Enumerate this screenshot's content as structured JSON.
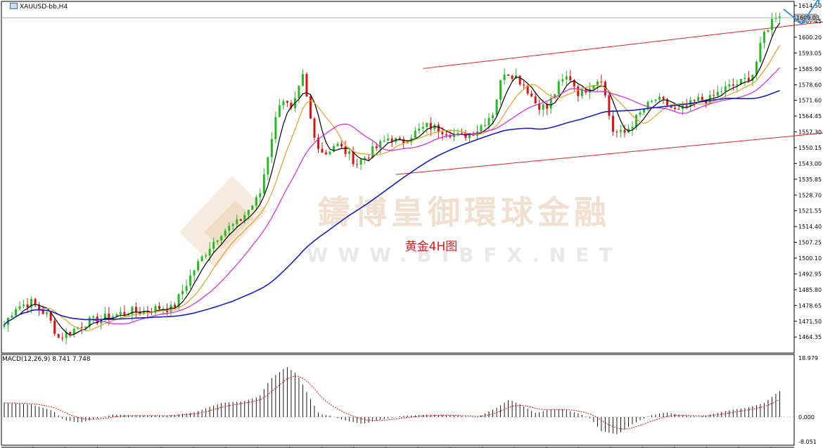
{
  "header": {
    "symbol": "XAUUSD-bb,H4"
  },
  "watermark": {
    "cn": "鑄博皇御環球金融",
    "en": "WWW.BIBFX.NET"
  },
  "colors": {
    "bull": "#22bb22",
    "bear": "#dd1111",
    "ma_black": "#000000",
    "ma_orange": "#e0a020",
    "ma_magenta": "#dd22dd",
    "ma_blue": "#1420c0",
    "channel": "#e02020",
    "arrow": "#2a8fdd",
    "current_price_box": "#c0c0c0"
  },
  "chart_data": [
    {
      "type": "candlestick",
      "title": "黄金4H图",
      "symbol": "XAUUSD-bb",
      "timeframe": "H4",
      "current_price": "1609.03",
      "y_ticks": [
        "1614.50",
        "1607.45",
        "1600.20",
        "1593.05",
        "1585.90",
        "1578.60",
        "1571.60",
        "1564.45",
        "1557.30",
        "1550.15",
        "1543.00",
        "1535.85",
        "1528.70",
        "1521.55",
        "1514.40",
        "1507.25",
        "1500.10",
        "1492.95",
        "1485.80",
        "1478.65",
        "1471.50",
        "1464.35"
      ],
      "ylim": [
        1459.0,
        1614.5
      ],
      "bars": 203,
      "close_path": [
        [
          0,
          1470
        ],
        [
          4,
          1478
        ],
        [
          10,
          1480
        ],
        [
          16,
          1474
        ],
        [
          20,
          1464
        ],
        [
          26,
          1468
        ],
        [
          30,
          1471
        ],
        [
          34,
          1472
        ],
        [
          40,
          1474
        ],
        [
          46,
          1476
        ],
        [
          52,
          1476
        ],
        [
          58,
          1478
        ],
        [
          62,
          1477
        ],
        [
          70,
          1495
        ],
        [
          76,
          1506
        ],
        [
          80,
          1512
        ],
        [
          86,
          1516
        ],
        [
          90,
          1522
        ],
        [
          94,
          1528
        ],
        [
          98,
          1552
        ],
        [
          102,
          1574
        ],
        [
          106,
          1566
        ],
        [
          110,
          1582
        ],
        [
          114,
          1555
        ],
        [
          118,
          1547
        ],
        [
          122,
          1552
        ],
        [
          126,
          1548
        ],
        [
          130,
          1543
        ],
        [
          134,
          1547
        ],
        [
          138,
          1551
        ],
        [
          142,
          1555
        ],
        [
          146,
          1552
        ],
        [
          150,
          1556
        ],
        [
          156,
          1560
        ],
        [
          162,
          1558
        ],
        [
          168,
          1555
        ],
        [
          174,
          1558
        ],
        [
          180,
          1566
        ],
        [
          184,
          1585
        ],
        [
          188,
          1583
        ],
        [
          192,
          1578
        ],
        [
          196,
          1570
        ],
        [
          200,
          1568
        ],
        [
          204,
          1578
        ],
        [
          208,
          1583
        ],
        [
          212,
          1574
        ],
        [
          216,
          1579
        ],
        [
          220,
          1582
        ],
        [
          224,
          1558
        ],
        [
          228,
          1556
        ],
        [
          232,
          1562
        ],
        [
          236,
          1568
        ],
        [
          240,
          1572
        ],
        [
          244,
          1570
        ],
        [
          248,
          1566
        ],
        [
          252,
          1569
        ],
        [
          256,
          1572
        ],
        [
          260,
          1572
        ],
        [
          264,
          1576
        ],
        [
          268,
          1578
        ],
        [
          272,
          1580
        ],
        [
          276,
          1584
        ],
        [
          280,
          1602
        ],
        [
          284,
          1610
        ],
        [
          288,
          1612
        ]
      ],
      "series": [
        {
          "name": "",
          "color": "#000000",
          "kind": "ma",
          "period": 5
        },
        {
          "name": "",
          "color": "#e0a020",
          "kind": "ma",
          "period": 10
        },
        {
          "name": "",
          "color": "#dd22dd",
          "kind": "ma",
          "period": 20
        },
        {
          "name": "",
          "color": "#1420c0",
          "kind": "ma",
          "period": 60
        }
      ],
      "channel": {
        "upper": [
          [
            0,
            1586
          ],
          [
            1,
            1613
          ]
        ],
        "lower": [
          [
            0,
            1538
          ],
          [
            1,
            1561
          ]
        ]
      },
      "projection_arrows": true
    },
    {
      "type": "macd_histogram",
      "label": "MACD(12,26,9) 8.741 7.748",
      "params": [
        12,
        26,
        9
      ],
      "macd": "8.741",
      "signal": "7.748",
      "y_ticks": [
        "18.979",
        "0.000",
        "-8.051"
      ],
      "ylim": [
        -8.051,
        18.979
      ],
      "profile": [
        [
          0,
          4.5
        ],
        [
          10,
          4.0
        ],
        [
          18,
          2.0
        ],
        [
          22,
          -1.0
        ],
        [
          28,
          -1.8
        ],
        [
          34,
          -0.5
        ],
        [
          40,
          0.8
        ],
        [
          50,
          0.5
        ],
        [
          60,
          0.4
        ],
        [
          70,
          1.5
        ],
        [
          80,
          4.5
        ],
        [
          88,
          5.0
        ],
        [
          94,
          6.5
        ],
        [
          98,
          12.0
        ],
        [
          104,
          16.0
        ],
        [
          108,
          13.5
        ],
        [
          112,
          7.0
        ],
        [
          116,
          1.0
        ],
        [
          120,
          0.4
        ],
        [
          126,
          -1.2
        ],
        [
          132,
          -2.2
        ],
        [
          138,
          -1.0
        ],
        [
          146,
          0.3
        ],
        [
          156,
          0.8
        ],
        [
          166,
          0.5
        ],
        [
          174,
          -0.2
        ],
        [
          182,
          3.2
        ],
        [
          186,
          5.5
        ],
        [
          190,
          4.0
        ],
        [
          196,
          1.2
        ],
        [
          200,
          2.3
        ],
        [
          206,
          2.5
        ],
        [
          212,
          1.0
        ],
        [
          216,
          -0.5
        ],
        [
          220,
          -4.5
        ],
        [
          226,
          -5.5
        ],
        [
          232,
          -2.0
        ],
        [
          238,
          0.5
        ],
        [
          244,
          1.5
        ],
        [
          250,
          0.5
        ],
        [
          256,
          0.0
        ],
        [
          262,
          1.2
        ],
        [
          268,
          2.3
        ],
        [
          274,
          3.0
        ],
        [
          280,
          4.5
        ],
        [
          286,
          8.5
        ],
        [
          290,
          9.0
        ]
      ]
    }
  ]
}
